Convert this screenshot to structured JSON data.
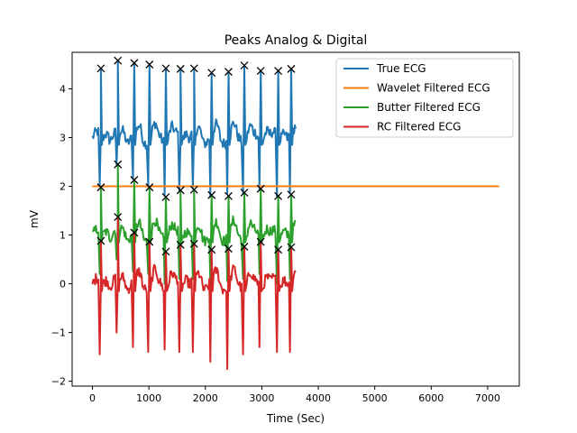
{
  "chart_data": {
    "type": "line",
    "title": "Peaks Analog & Digital",
    "xlabel": "Time (Sec)",
    "ylabel": "mV",
    "xlim": [
      -360,
      7560
    ],
    "ylim": [
      -2.1,
      4.75
    ],
    "xticks": [
      0,
      1000,
      2000,
      3000,
      4000,
      5000,
      6000,
      7000
    ],
    "xtick_labels": [
      "0",
      "1000",
      "2000",
      "3000",
      "4000",
      "5000",
      "6000",
      "7000"
    ],
    "yticks": [
      -2,
      -1,
      0,
      1,
      2,
      3,
      4
    ],
    "ytick_labels": [
      "−2",
      "−1",
      "0",
      "1",
      "2",
      "3",
      "4"
    ],
    "grid": false,
    "legend_position": "top-right",
    "beat_times": [
      150,
      450,
      740,
      1010,
      1300,
      1560,
      1800,
      2110,
      2410,
      2690,
      2980,
      3290,
      3520
    ],
    "series": [
      {
        "name": "True ECG",
        "color": "#1f77b4",
        "x_range": [
          0,
          3600
        ],
        "baseline": 3.0,
        "peaks": [
          4.42,
          4.58,
          4.53,
          4.5,
          4.42,
          4.41,
          4.42,
          4.33,
          4.35,
          4.48,
          4.37,
          4.37,
          4.41
        ],
        "troughs": [
          2.0,
          2.45,
          2.15,
          2.0,
          1.8,
          1.9,
          1.95,
          1.8,
          1.85,
          1.85,
          1.95,
          1.8,
          1.85
        ]
      },
      {
        "name": "Wavelet Filtered ECG",
        "color": "#ff7f0e",
        "x_range": [
          0,
          7200
        ],
        "constant": 2.0
      },
      {
        "name": "Butter Filtered ECG",
        "color": "#2ca02c",
        "x_range": [
          0,
          3600
        ],
        "baseline": 1.0,
        "peaks": [
          1.98,
          2.45,
          2.13,
          1.98,
          1.78,
          1.92,
          1.93,
          1.82,
          1.8,
          1.87,
          1.95,
          1.8,
          1.83
        ],
        "troughs": [
          0.2,
          0.5,
          0.25,
          0.2,
          0.0,
          0.1,
          0.1,
          0.0,
          0.05,
          0.1,
          0.2,
          0.0,
          0.1
        ]
      },
      {
        "name": "RC Filtered ECG",
        "color": "#d62728",
        "x_range": [
          0,
          3600
        ],
        "baseline": 0.0,
        "peaks": [
          0.88,
          1.37,
          1.05,
          0.86,
          0.66,
          0.8,
          0.82,
          0.7,
          0.72,
          0.76,
          0.86,
          0.7,
          0.75
        ],
        "troughs": [
          -1.45,
          -1.0,
          -1.3,
          -1.4,
          -1.35,
          -1.4,
          -1.4,
          -1.6,
          -1.75,
          -1.45,
          -1.3,
          -1.4,
          -1.4
        ]
      }
    ],
    "peak_markers": {
      "marker": "x",
      "color": "#000000",
      "points": [
        [
          150,
          4.42
        ],
        [
          450,
          4.58
        ],
        [
          740,
          4.53
        ],
        [
          1010,
          4.5
        ],
        [
          1300,
          4.42
        ],
        [
          1560,
          4.41
        ],
        [
          1800,
          4.42
        ],
        [
          2110,
          4.33
        ],
        [
          2410,
          4.35
        ],
        [
          2690,
          4.48
        ],
        [
          2980,
          4.37
        ],
        [
          3290,
          4.37
        ],
        [
          3520,
          4.41
        ],
        [
          150,
          1.98
        ],
        [
          450,
          2.45
        ],
        [
          740,
          2.13
        ],
        [
          1010,
          1.98
        ],
        [
          1300,
          1.78
        ],
        [
          1560,
          1.92
        ],
        [
          1800,
          1.93
        ],
        [
          2110,
          1.82
        ],
        [
          2410,
          1.8
        ],
        [
          2690,
          1.87
        ],
        [
          2980,
          1.95
        ],
        [
          3290,
          1.8
        ],
        [
          3520,
          1.83
        ],
        [
          150,
          0.88
        ],
        [
          450,
          1.37
        ],
        [
          740,
          1.05
        ],
        [
          1010,
          0.86
        ],
        [
          1300,
          0.66
        ],
        [
          1560,
          0.8
        ],
        [
          1800,
          0.82
        ],
        [
          2110,
          0.7
        ],
        [
          2410,
          0.72
        ],
        [
          2690,
          0.76
        ],
        [
          2980,
          0.86
        ],
        [
          3290,
          0.7
        ],
        [
          3520,
          0.75
        ]
      ]
    }
  }
}
